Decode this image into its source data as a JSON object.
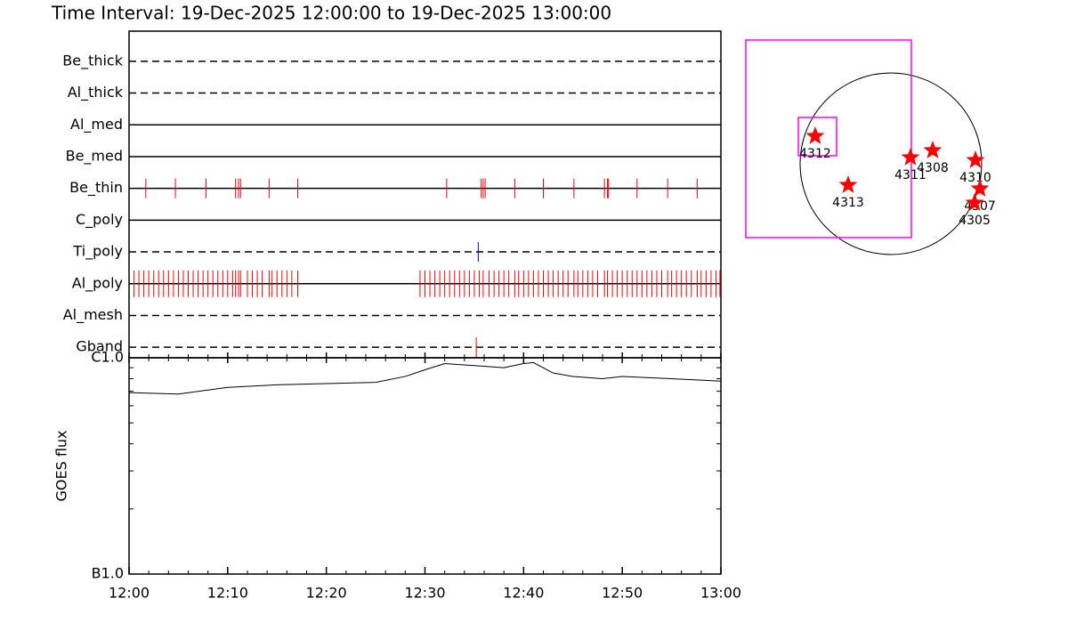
{
  "title": "Time Interval: 19-Dec-2025 12:00:00 to 19-Dec-2025 13:00:00",
  "chart_data": [
    {
      "type": "timeline",
      "categories": [
        "Be_thick",
        "Al_thick",
        "Al_med",
        "Be_med",
        "Be_thin",
        "C_poly",
        "Ti_poly",
        "Al_poly",
        "Al_mesh",
        "Gband"
      ],
      "line_styles": [
        "dashed",
        "dashed",
        "solid",
        "solid",
        "solid",
        "solid",
        "dashed",
        "solid",
        "dashed",
        "dashed"
      ],
      "colors": [
        "#ff0000",
        "#ff0000",
        "#ff0000",
        "#ff0000",
        "#ff0000",
        "#ff0000",
        "#0000ff",
        "#ff0000",
        "#ff0000",
        "#ff0000"
      ],
      "events": [
        [],
        [],
        [],
        [],
        [
          1.7,
          4.7,
          7.8,
          10.8,
          11.1,
          11.3,
          14.2,
          17.1,
          32.2,
          35.7,
          35.9,
          36.1,
          39.1,
          42.0,
          45.1,
          48.2,
          48.5,
          48.6,
          51.5,
          54.6,
          57.6
        ],
        [],
        [
          35.4
        ],
        [
          0.5,
          1.0,
          1.5,
          2.0,
          2.5,
          3.0,
          3.5,
          4.0,
          4.5,
          5.0,
          5.5,
          6.0,
          6.5,
          7.0,
          7.5,
          8.0,
          8.5,
          9.0,
          9.5,
          10.0,
          10.5,
          10.8,
          11.1,
          11.3,
          12.0,
          12.5,
          13.0,
          13.5,
          14.2,
          14.5,
          15.0,
          15.5,
          16.0,
          16.5,
          17.1,
          29.5,
          30.0,
          30.5,
          31.0,
          31.5,
          32.0,
          32.5,
          33.0,
          33.5,
          34.0,
          34.5,
          35.0,
          35.5,
          35.9,
          36.5,
          37.0,
          37.5,
          38.0,
          38.5,
          39.1,
          39.5,
          40.0,
          40.5,
          41.0,
          41.5,
          42.0,
          42.5,
          43.0,
          43.5,
          44.0,
          44.5,
          45.1,
          45.5,
          46.0,
          46.5,
          47.0,
          47.5,
          48.2,
          48.5,
          49.0,
          49.5,
          50.0,
          50.5,
          51.0,
          51.5,
          52.0,
          52.5,
          53.0,
          53.5,
          54.0,
          54.6,
          55.0,
          55.5,
          56.0,
          56.5,
          57.0,
          57.6,
          58.0,
          58.5,
          59.0,
          59.5,
          59.9
        ],
        [],
        [
          35.2
        ]
      ],
      "xlim": [
        0,
        60
      ]
    },
    {
      "type": "line",
      "ylabel": "GOES flux",
      "color": "#000000",
      "ylog": true,
      "x": [
        0,
        5,
        10,
        15,
        20,
        25,
        28,
        30,
        32,
        35,
        38,
        40,
        41,
        43,
        45,
        48,
        50,
        55,
        60
      ],
      "values": [
        6.9e-07,
        6.8e-07,
        7.3e-07,
        7.5e-07,
        7.6e-07,
        7.7e-07,
        8.2e-07,
        8.8e-07,
        9.4e-07,
        9.2e-07,
        9e-07,
        9.4e-07,
        9.5e-07,
        8.5e-07,
        8.2e-07,
        8e-07,
        8.2e-07,
        8e-07,
        7.8e-07
      ],
      "xlim": [
        0,
        60
      ],
      "xticks": [
        {
          "value": 0,
          "label": "12:00"
        },
        {
          "value": 10,
          "label": "12:10"
        },
        {
          "value": 20,
          "label": "12:20"
        },
        {
          "value": 30,
          "label": "12:30"
        },
        {
          "value": 40,
          "label": "12:40"
        },
        {
          "value": 50,
          "label": "12:50"
        },
        {
          "value": 60,
          "label": "13:00"
        }
      ],
      "xminorticks": [
        2,
        4,
        6,
        8,
        12,
        14,
        16,
        18,
        22,
        24,
        26,
        28,
        32,
        34,
        36,
        38,
        42,
        44,
        46,
        48,
        52,
        54,
        56,
        58
      ],
      "ylim": [
        1e-07,
        1e-06
      ],
      "yticks": [
        {
          "value": 1e-07,
          "label": "B1.0"
        },
        {
          "value": 1e-06,
          "label": "C1.0"
        }
      ],
      "yminorticks": [
        2e-07,
        3e-07,
        4e-07,
        5e-07,
        6e-07,
        7e-07,
        8e-07,
        9e-07
      ]
    },
    {
      "type": "map",
      "solar_radius": 975,
      "color": "#ff0000",
      "box_color": "#ff00ff",
      "boxes": [
        {
          "x0": -1558,
          "x1": 220,
          "y0": -793,
          "y1": 1329
        },
        {
          "x0": -994,
          "x1": -583,
          "y0": 86,
          "y1": 497
        }
      ],
      "regions": [
        {
          "label": "4312",
          "x": -813,
          "y": 296
        },
        {
          "label": "4313",
          "x": -459,
          "y": -229
        },
        {
          "label": "4311",
          "x": 210,
          "y": 67
        },
        {
          "label": "4308",
          "x": 449,
          "y": 143
        },
        {
          "label": "4310",
          "x": 908,
          "y": 38
        },
        {
          "label": "4307",
          "x": 956,
          "y": -268
        },
        {
          "label": "4305",
          "x": 899,
          "y": -421
        }
      ]
    }
  ]
}
